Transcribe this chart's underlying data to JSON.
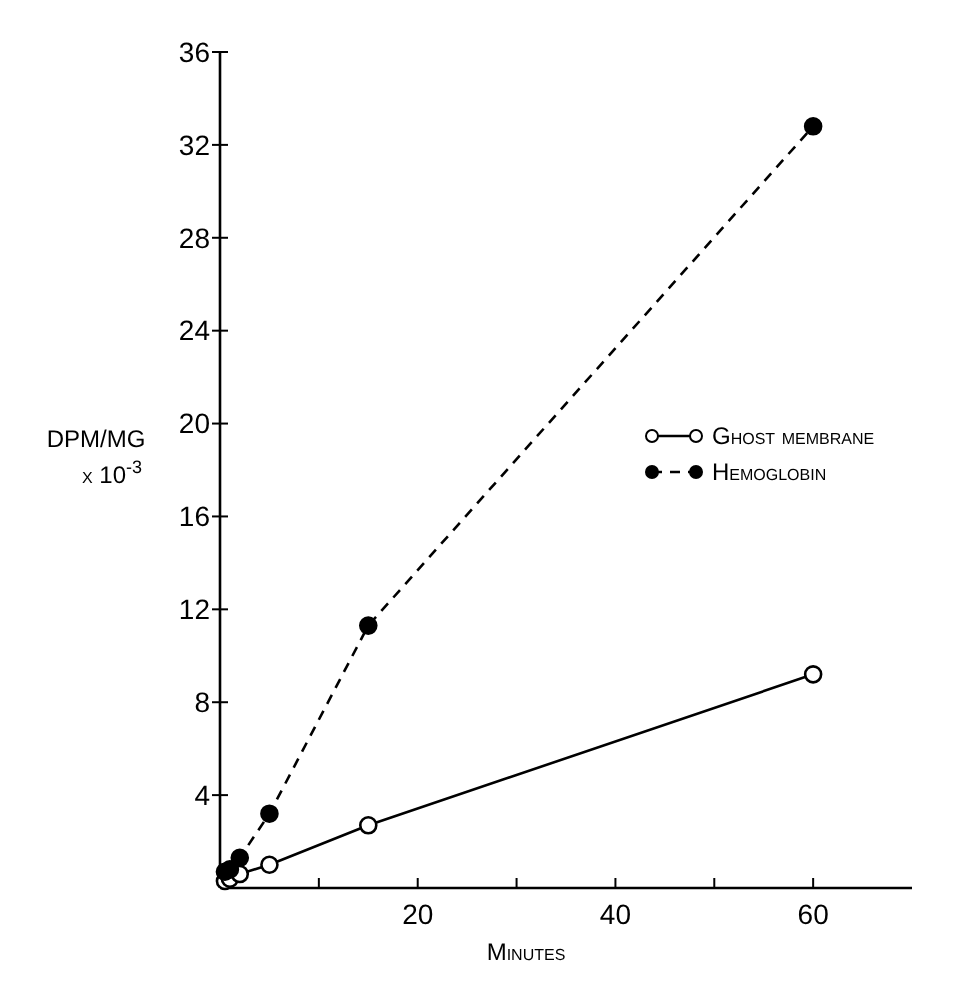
{
  "chart_data": {
    "type": "line",
    "xlabel": "Minutes",
    "ylabel": "DPM/MG x 10$^{-3}$",
    "xlim": [
      0,
      70
    ],
    "ylim": [
      0,
      36
    ],
    "xticks": [
      {
        "value": 10,
        "label": null
      },
      20,
      {
        "value": 30,
        "label": null
      },
      40,
      {
        "value": 50,
        "label": null
      },
      60
    ],
    "yticks": [
      4,
      8,
      12,
      16,
      20,
      24,
      28,
      32,
      36
    ],
    "legend": "right",
    "grid": false,
    "series": [
      {
        "name": "Ghost membrane",
        "color": "#000000",
        "marker": "circle",
        "line_style": "solid",
        "x": [
          0.5,
          1,
          2,
          5,
          15,
          60
        ],
        "values": [
          0.3,
          0.4,
          0.6,
          1.0,
          2.7,
          9.2
        ]
      },
      {
        "name": "Hemoglobin",
        "color": "#000000",
        "marker": "circle",
        "line_style": "dashed",
        "x": [
          0.5,
          1,
          2,
          5,
          15,
          60
        ],
        "values": [
          0.7,
          0.8,
          1.3,
          3.2,
          11.3,
          32.8
        ]
      }
    ]
  }
}
